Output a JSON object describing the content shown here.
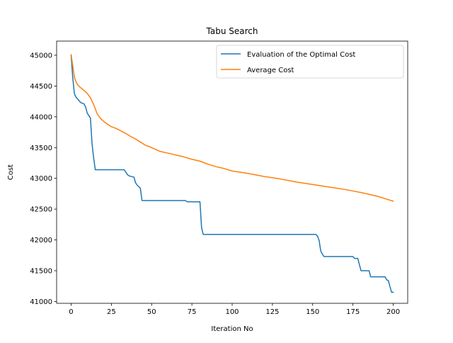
{
  "chart_data": {
    "type": "line",
    "title": "Tabu Search",
    "xlabel": "Iteration No",
    "ylabel": "Cost",
    "xlim": [
      -9,
      209
    ],
    "ylim": [
      40970,
      45230
    ],
    "xticks": [
      0,
      25,
      50,
      75,
      100,
      125,
      150,
      175,
      200
    ],
    "yticks": [
      41000,
      41500,
      42000,
      42500,
      43000,
      43500,
      44000,
      44500,
      45000
    ],
    "grid": false,
    "legend_position": "upper right",
    "series": [
      {
        "name": "Evaluation of the Optimal Cost",
        "color": "#1f77b4",
        "x": [
          0,
          1,
          2,
          3,
          4,
          5,
          6,
          7,
          8,
          9,
          10,
          11,
          12,
          13,
          14,
          15,
          16,
          33,
          34,
          35,
          36,
          39,
          40,
          41,
          43,
          44,
          71,
          72,
          80,
          81,
          82,
          152,
          153,
          154,
          155,
          156,
          157,
          175,
          176,
          178,
          179,
          180,
          182,
          185,
          186,
          187,
          195,
          196,
          197,
          198,
          199,
          200
        ],
        "y": [
          45000,
          44640,
          44380,
          44320,
          44290,
          44260,
          44230,
          44220,
          44210,
          44160,
          44060,
          44020,
          43980,
          43560,
          43330,
          43140,
          43140,
          43140,
          43100,
          43060,
          43040,
          43020,
          42930,
          42890,
          42840,
          42640,
          42640,
          42620,
          42620,
          42200,
          42090,
          42090,
          42060,
          41990,
          41820,
          41770,
          41730,
          41730,
          41700,
          41700,
          41600,
          41500,
          41500,
          41500,
          41400,
          41400,
          41400,
          41350,
          41340,
          41240,
          41150,
          41150
        ]
      },
      {
        "name": "Average Cost",
        "color": "#ff7f0e",
        "x": [
          0,
          1,
          2,
          3,
          4,
          6,
          8,
          10,
          12,
          14,
          16,
          18,
          20,
          22,
          25,
          28,
          31,
          34,
          37,
          40,
          43,
          46,
          50,
          55,
          60,
          65,
          70,
          75,
          80,
          85,
          90,
          95,
          100,
          110,
          120,
          130,
          140,
          150,
          160,
          170,
          180,
          190,
          200
        ],
        "y": [
          45010,
          44830,
          44650,
          44570,
          44520,
          44470,
          44430,
          44380,
          44310,
          44200,
          44060,
          43980,
          43930,
          43890,
          43840,
          43810,
          43770,
          43730,
          43680,
          43640,
          43590,
          43540,
          43500,
          43440,
          43410,
          43380,
          43350,
          43310,
          43280,
          43230,
          43190,
          43160,
          43120,
          43080,
          43030,
          42990,
          42940,
          42900,
          42860,
          42820,
          42770,
          42710,
          42630
        ]
      }
    ]
  }
}
